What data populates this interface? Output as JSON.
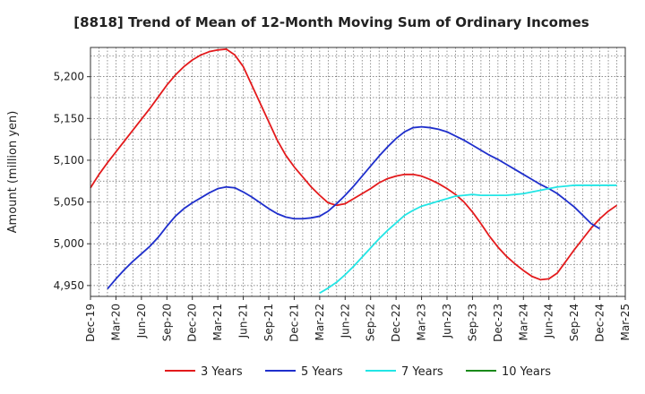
{
  "chart_data": {
    "type": "line",
    "title": "[8818]  Trend of Mean of 12-Month Moving Sum of Ordinary Incomes",
    "xlabel": "",
    "ylabel": "Amount (million yen)",
    "ylim": [
      4937,
      5235
    ],
    "yticks": [
      4950,
      5000,
      5050,
      5100,
      5150,
      5200
    ],
    "ytick_labels": [
      "4,950",
      "5,000",
      "5,050",
      "5,100",
      "5,150",
      "5,200"
    ],
    "x_start": "Dec-19",
    "x_tick_labels": [
      "Dec-19",
      "Mar-20",
      "Jun-20",
      "Sep-20",
      "Dec-20",
      "Mar-21",
      "Jun-21",
      "Sep-21",
      "Dec-21",
      "Mar-22",
      "Jun-22",
      "Sep-22",
      "Dec-22",
      "Mar-23",
      "Jun-23",
      "Sep-23",
      "Dec-23",
      "Mar-24",
      "Jun-24",
      "Sep-24",
      "Dec-24",
      "Mar-25"
    ],
    "grid": true,
    "legend_position": "bottom",
    "series": [
      {
        "name": "3 Years",
        "color": "#e31a1c",
        "start_index": 0,
        "values": [
          5067,
          5083,
          5097,
          5110,
          5123,
          5136,
          5149,
          5162,
          5176,
          5190,
          5202,
          5212,
          5220,
          5226,
          5230,
          5232,
          5233,
          5226,
          5212,
          5190,
          5168,
          5146,
          5124,
          5106,
          5092,
          5080,
          5068,
          5058,
          5049,
          5046,
          5048,
          5054,
          5060,
          5066,
          5073,
          5078,
          5081,
          5083,
          5083,
          5081,
          5077,
          5072,
          5066,
          5059,
          5050,
          5038,
          5024,
          5009,
          4996,
          4985,
          4976,
          4968,
          4961,
          4957,
          4958,
          4965,
          4979,
          4993,
          5006,
          5019,
          5030,
          5039,
          5046
        ]
      },
      {
        "name": "5 Years",
        "color": "#1f2fcc",
        "start_index": 2,
        "values": [
          4946,
          4958,
          4969,
          4979,
          4988,
          4997,
          5008,
          5021,
          5033,
          5042,
          5049,
          5055,
          5061,
          5066,
          5068,
          5067,
          5062,
          5056,
          5049,
          5042,
          5036,
          5032,
          5030,
          5030,
          5031,
          5033,
          5039,
          5048,
          5058,
          5069,
          5081,
          5093,
          5105,
          5116,
          5126,
          5134,
          5139,
          5140,
          5139,
          5137,
          5134,
          5129,
          5124,
          5118,
          5112,
          5106,
          5101,
          5095,
          5089,
          5083,
          5077,
          5071,
          5066,
          5060,
          5052,
          5044,
          5034,
          5024,
          5018
        ]
      },
      {
        "name": "7 Years",
        "color": "#22e5e5",
        "start_index": 27,
        "values": [
          4941,
          4947,
          4954,
          4963,
          4973,
          4984,
          4995,
          5006,
          5016,
          5025,
          5034,
          5040,
          5045,
          5048,
          5051,
          5054,
          5057,
          5058,
          5059,
          5058,
          5058,
          5058,
          5058,
          5059,
          5060,
          5062,
          5064,
          5066,
          5068,
          5069,
          5070,
          5070,
          5070,
          5070,
          5070,
          5070
        ]
      },
      {
        "name": "10 Years",
        "color": "#1a8a1a",
        "start_index": 0,
        "values": []
      }
    ]
  }
}
